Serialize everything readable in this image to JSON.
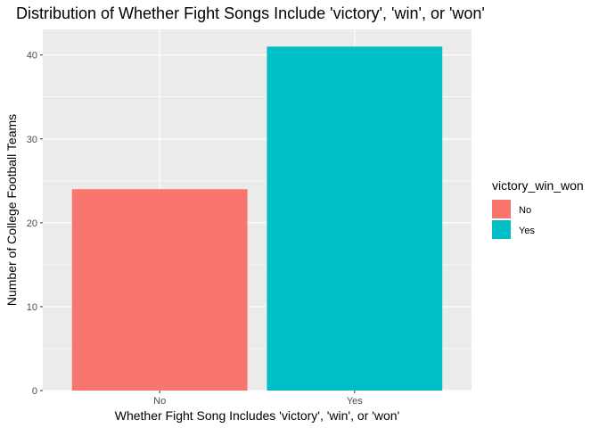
{
  "chart_data": {
    "type": "bar",
    "title": "Distribution of Whether Fight Songs Include 'victory', 'win', or 'won'",
    "xlabel": "Whether Fight Song Includes 'victory', 'win', or 'won'",
    "ylabel": "Number of College Football Teams",
    "categories": [
      "No",
      "Yes"
    ],
    "values": [
      24,
      41
    ],
    "colors": [
      "#F8766D",
      "#00BFC4"
    ],
    "ylim": [
      0,
      43.05
    ],
    "yticks": [
      0,
      10,
      20,
      30,
      40
    ],
    "grid": true,
    "legend": {
      "title": "victory_win_won",
      "position": "right",
      "items": [
        {
          "label": "No",
          "color": "#F8766D"
        },
        {
          "label": "Yes",
          "color": "#00BFC4"
        }
      ]
    }
  }
}
